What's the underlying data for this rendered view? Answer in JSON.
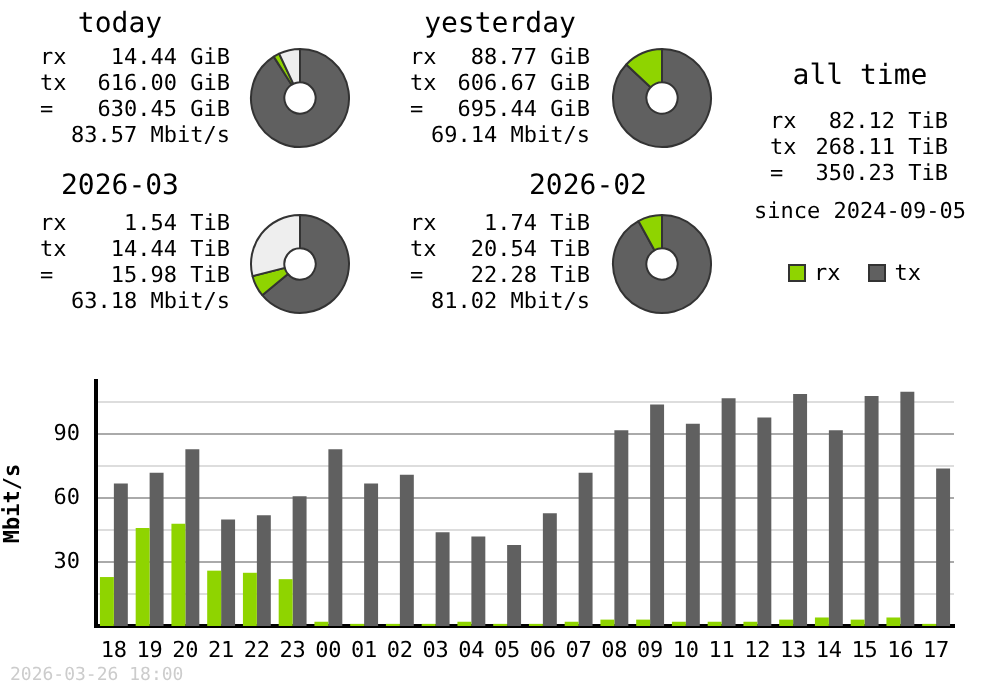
{
  "chart_data": [
    {
      "type": "donut",
      "title": "today",
      "categories": [
        null,
        null,
        null
      ],
      "values": [
        91,
        2,
        7
      ],
      "colors": [
        "#606060",
        "#8fd400",
        "#eeeeee"
      ],
      "annotations": [
        "rx",
        "14.44 GiB",
        "tx",
        "616.00 GiB",
        "=",
        "630.45 GiB",
        "83.57 Mbit/s"
      ]
    },
    {
      "type": "donut",
      "title": "yesterday",
      "categories": [
        null,
        null
      ],
      "values": [
        87,
        13
      ],
      "colors": [
        "#606060",
        "#8fd400"
      ],
      "annotations": [
        "rx",
        "88.77 GiB",
        "tx",
        "606.67 GiB",
        "=",
        "695.44 GiB",
        "69.14 Mbit/s"
      ]
    },
    {
      "type": "other",
      "title": "all time",
      "annotations": [
        "rx",
        "82.12 TiB",
        "tx",
        "268.11 TiB",
        "=",
        "350.23 TiB",
        "since 2024-09-05"
      ]
    },
    {
      "type": "donut",
      "title": "2026-03",
      "categories": [
        null,
        null,
        null
      ],
      "values": [
        64,
        7,
        29
      ],
      "colors": [
        "#606060",
        "#8fd400",
        "#eeeeee"
      ],
      "annotations": [
        "rx",
        "1.54 TiB",
        "tx",
        "14.44 TiB",
        "=",
        "15.98 TiB",
        "63.18 Mbit/s"
      ]
    },
    {
      "type": "donut",
      "title": "2026-02",
      "categories": [
        null,
        null
      ],
      "values": [
        92,
        8
      ],
      "colors": [
        "#606060",
        "#8fd400"
      ],
      "annotations": [
        "rx",
        "1.74 TiB",
        "tx",
        "20.54 TiB",
        "=",
        "22.28 TiB",
        "81.02 Mbit/s"
      ]
    },
    {
      "type": "bar",
      "ylabel": "Mbit/s",
      "legend": "top right",
      "grid": "y",
      "categories": [
        "18",
        "19",
        "20",
        "21",
        "22",
        "23",
        "00",
        "01",
        "02",
        "03",
        "04",
        "05",
        "06",
        "07",
        "08",
        "09",
        "10",
        "11",
        "12",
        "13",
        "14",
        "15",
        "16",
        "17"
      ],
      "series": [
        {
          "name": "rx",
          "color": "#8fd400",
          "values": [
            23,
            46,
            48,
            26,
            25,
            22,
            2,
            1,
            1,
            1,
            2,
            1,
            1,
            2,
            3,
            3,
            2,
            2,
            2,
            3,
            4,
            3,
            4,
            1
          ]
        },
        {
          "name": "tx",
          "color": "#606060",
          "values": [
            67,
            72,
            83,
            50,
            52,
            61,
            83,
            67,
            71,
            44,
            42,
            38,
            53,
            72,
            92,
            104,
            95,
            107,
            98,
            109,
            92,
            108,
            110,
            74
          ]
        }
      ],
      "ylim": [
        0,
        115
      ],
      "yticks": [
        {
          "value": 15,
          "label": null
        },
        30,
        {
          "value": 45,
          "label": null
        },
        60,
        {
          "value": 75,
          "label": null
        },
        90,
        {
          "value": 105,
          "label": null
        }
      ],
      "annotations": [
        "2026-03-26 18:00"
      ]
    }
  ]
}
